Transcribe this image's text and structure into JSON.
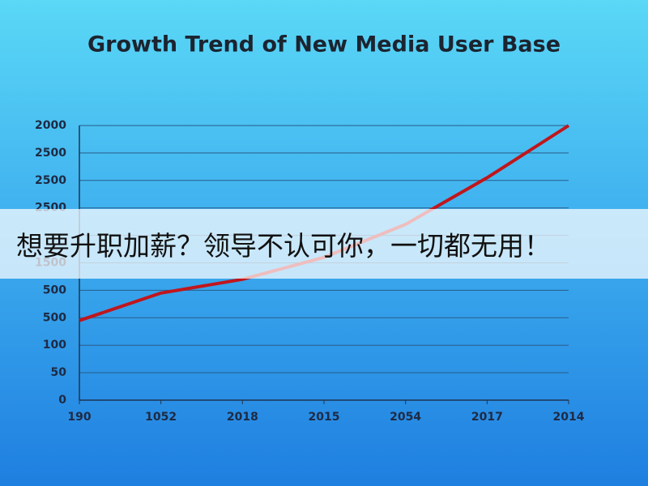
{
  "chart_data": {
    "type": "line",
    "title": "Growth Trend of New Media User Base",
    "categories": [
      "190",
      "1052",
      "2018",
      "2015",
      "2054",
      "2017",
      "2014"
    ],
    "series": [
      {
        "color": "#c0161c",
        "values": [
          2.9,
          3.9,
          4.4,
          5.2,
          6.4,
          8.1,
          10
        ]
      }
    ],
    "ylim": [
      0,
      10
    ],
    "yticks": [
      {
        "value": 0,
        "label": "0"
      },
      {
        "value": 1,
        "label": "50"
      },
      {
        "value": 2,
        "label": "100"
      },
      {
        "value": 3,
        "label": "500"
      },
      {
        "value": 4,
        "label": "500"
      },
      {
        "value": 5,
        "label": "1500"
      },
      {
        "value": 6,
        "label": null
      },
      {
        "value": 7,
        "label": "2500"
      },
      {
        "value": 8,
        "label": "2500"
      },
      {
        "value": 9,
        "label": "2500"
      },
      {
        "value": 10,
        "label": "2000"
      }
    ],
    "grid": true
  },
  "overlay_text": "想要升职加薪？领导不认可你，一切都无用！"
}
